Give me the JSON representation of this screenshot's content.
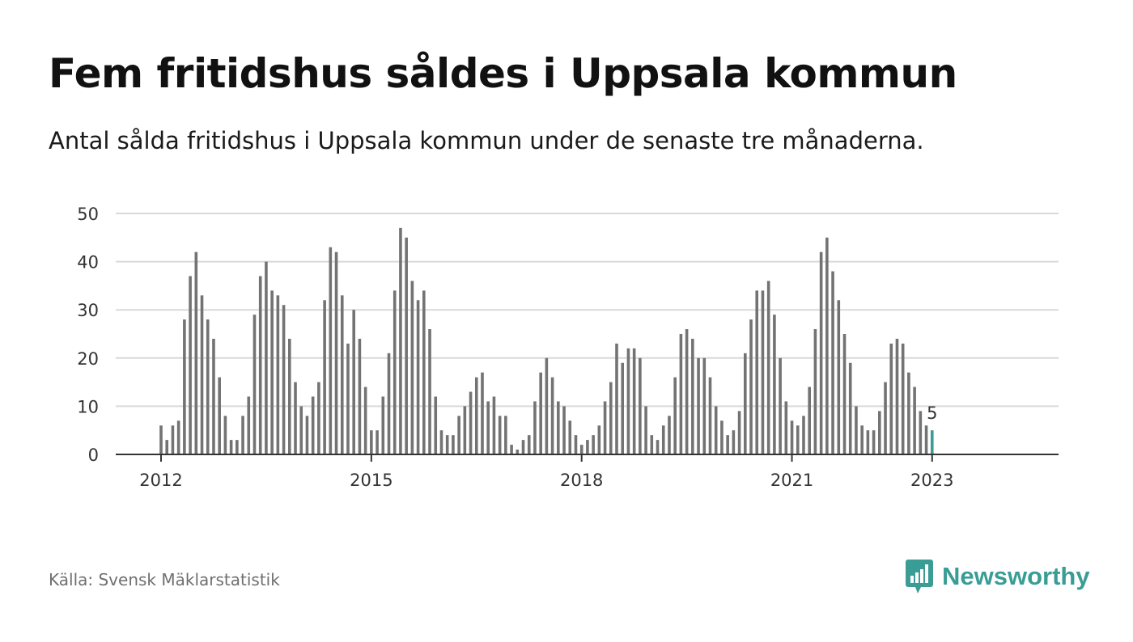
{
  "title": "Fem fritidshus såldes i Uppsala kommun",
  "subtitle": "Antal sålda fritidshus i Uppsala kommun under de senaste tre månaderna.",
  "source": "Källa: Svensk Mäklarstatistik",
  "brand": {
    "name": "Newsworthy",
    "icon": "bar-chart-speech-bubble-icon",
    "color": "#3a9d95"
  },
  "colors": {
    "bar": "#737373",
    "highlight": "#3a9d95",
    "grid": "#d9d9d9",
    "axis": "#333333"
  },
  "chart_data": {
    "type": "bar",
    "title": "Fem fritidshus såldes i Uppsala kommun",
    "subtitle": "Antal sålda fritidshus i Uppsala kommun under de senaste tre månaderna.",
    "xlabel": "",
    "ylabel": "",
    "x_start": "2012-01",
    "x_end": "2023-01",
    "x_interval": "month",
    "xticks": [
      "2012",
      "2015",
      "2018",
      "2021",
      "2023"
    ],
    "yticks": [
      0,
      10,
      20,
      30,
      40,
      50
    ],
    "ylim": [
      0,
      50
    ],
    "grid": true,
    "highlight_label": "5",
    "values": [
      6,
      3,
      6,
      7,
      28,
      37,
      42,
      33,
      28,
      24,
      16,
      8,
      3,
      3,
      8,
      12,
      29,
      37,
      40,
      34,
      33,
      31,
      24,
      15,
      10,
      8,
      12,
      15,
      32,
      43,
      42,
      33,
      23,
      30,
      24,
      14,
      5,
      5,
      12,
      21,
      34,
      47,
      45,
      36,
      32,
      34,
      26,
      12,
      5,
      4,
      4,
      8,
      10,
      13,
      16,
      17,
      11,
      12,
      8,
      8,
      2,
      1,
      3,
      4,
      11,
      17,
      20,
      16,
      11,
      10,
      7,
      4,
      2,
      3,
      4,
      6,
      11,
      15,
      23,
      19,
      22,
      22,
      20,
      10,
      4,
      3,
      6,
      8,
      16,
      25,
      26,
      24,
      20,
      20,
      16,
      10,
      7,
      4,
      5,
      9,
      21,
      28,
      34,
      34,
      36,
      29,
      20,
      11,
      7,
      6,
      8,
      14,
      26,
      42,
      45,
      38,
      32,
      25,
      19,
      10,
      6,
      5,
      5,
      9,
      15,
      23,
      24,
      23,
      17,
      14,
      9,
      6,
      5
    ]
  }
}
